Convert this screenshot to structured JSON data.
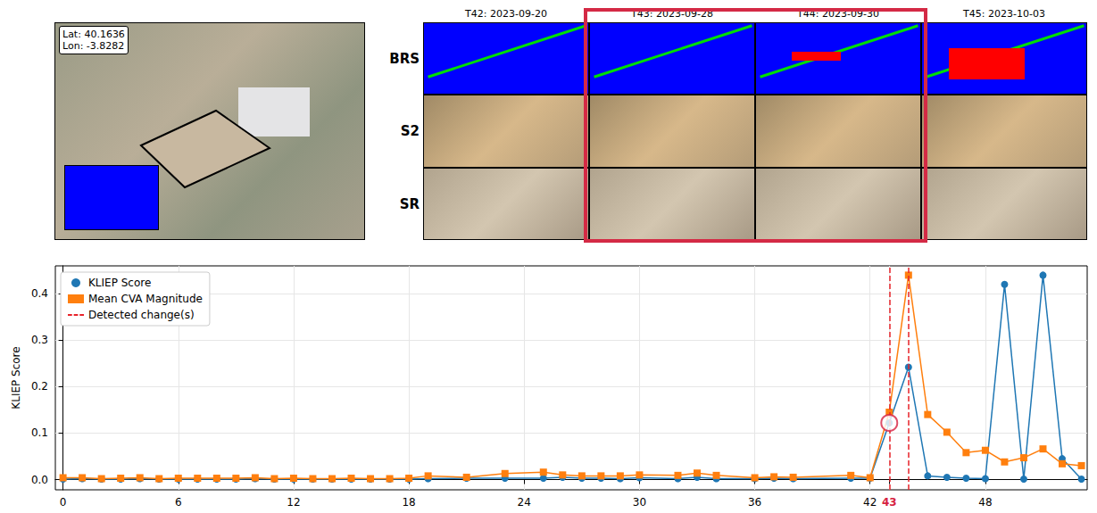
{
  "panels": {
    "location": {
      "lat": "Lat: 40.1636",
      "lon": "Lon: -3.8282"
    },
    "columns": [
      "T42: 2023-09-20",
      "T43: 2023-09-28",
      "T44: 2023-09-30",
      "T45: 2023-10-03"
    ],
    "rows": [
      "BRS",
      "S2",
      "SR"
    ],
    "highlighted_columns": [
      "T43: 2023-09-28",
      "T44: 2023-09-30"
    ]
  },
  "chart_data": {
    "type": "line",
    "ylabel": "KLIEP Score",
    "x": [
      0,
      1,
      2,
      3,
      4,
      5,
      6,
      7,
      8,
      9,
      10,
      11,
      12,
      13,
      14,
      15,
      16,
      17,
      18,
      19,
      21,
      23,
      25,
      26,
      27,
      28,
      29,
      30,
      32,
      33,
      34,
      36,
      37,
      38,
      41,
      42,
      43,
      44,
      45,
      46,
      47,
      48,
      49,
      50,
      51,
      52,
      53
    ],
    "series": [
      {
        "name": "KLIEP Score",
        "color": "#1f77b4",
        "marker": "circle",
        "values": [
          0.001,
          0.002,
          0.001,
          0.001,
          0.002,
          0.001,
          0.001,
          0.001,
          0.001,
          0.001,
          0.002,
          0.001,
          0.001,
          0.001,
          0.001,
          0.001,
          0.001,
          0.001,
          0.001,
          0.002,
          0.003,
          0.003,
          0.003,
          0.005,
          0.003,
          0.003,
          0.002,
          0.004,
          0.002,
          0.005,
          0.002,
          0.002,
          0.003,
          0.002,
          0.003,
          0.003,
          0.122,
          0.242,
          0.008,
          0.005,
          0.003,
          0.002,
          0.42,
          0.001,
          0.44,
          0.045,
          0.001
        ]
      },
      {
        "name": "Mean CVA Magnitude",
        "color": "#ff7f0e",
        "marker": "square",
        "values": [
          0.004,
          0.004,
          0.002,
          0.003,
          0.004,
          0.002,
          0.003,
          0.003,
          0.003,
          0.003,
          0.004,
          0.002,
          0.003,
          0.002,
          0.002,
          0.003,
          0.002,
          0.002,
          0.003,
          0.008,
          0.005,
          0.013,
          0.016,
          0.01,
          0.008,
          0.008,
          0.008,
          0.01,
          0.009,
          0.014,
          0.009,
          0.004,
          0.006,
          0.005,
          0.009,
          0.004,
          0.145,
          0.44,
          0.14,
          0.102,
          0.058,
          0.063,
          0.038,
          0.047,
          0.066,
          0.034,
          0.03
        ]
      }
    ],
    "detected_changes": {
      "name": "Detected change(s)",
      "color": "#e8232a",
      "line_style": "dashed",
      "x": [
        43,
        44
      ]
    },
    "highlight": {
      "x": 43,
      "y": 0.122,
      "color": "#d62242"
    },
    "xlim": [
      -0.4,
      53.3
    ],
    "xticks": [
      0,
      6,
      12,
      18,
      24,
      30,
      36,
      42,
      43,
      48
    ],
    "ylim": [
      -0.022,
      0.46
    ],
    "yticks": [
      {
        "value": 0,
        "label": "0.0"
      },
      0.1,
      0.2,
      0.3,
      0.4
    ],
    "grid": true,
    "legend": "upper left"
  }
}
